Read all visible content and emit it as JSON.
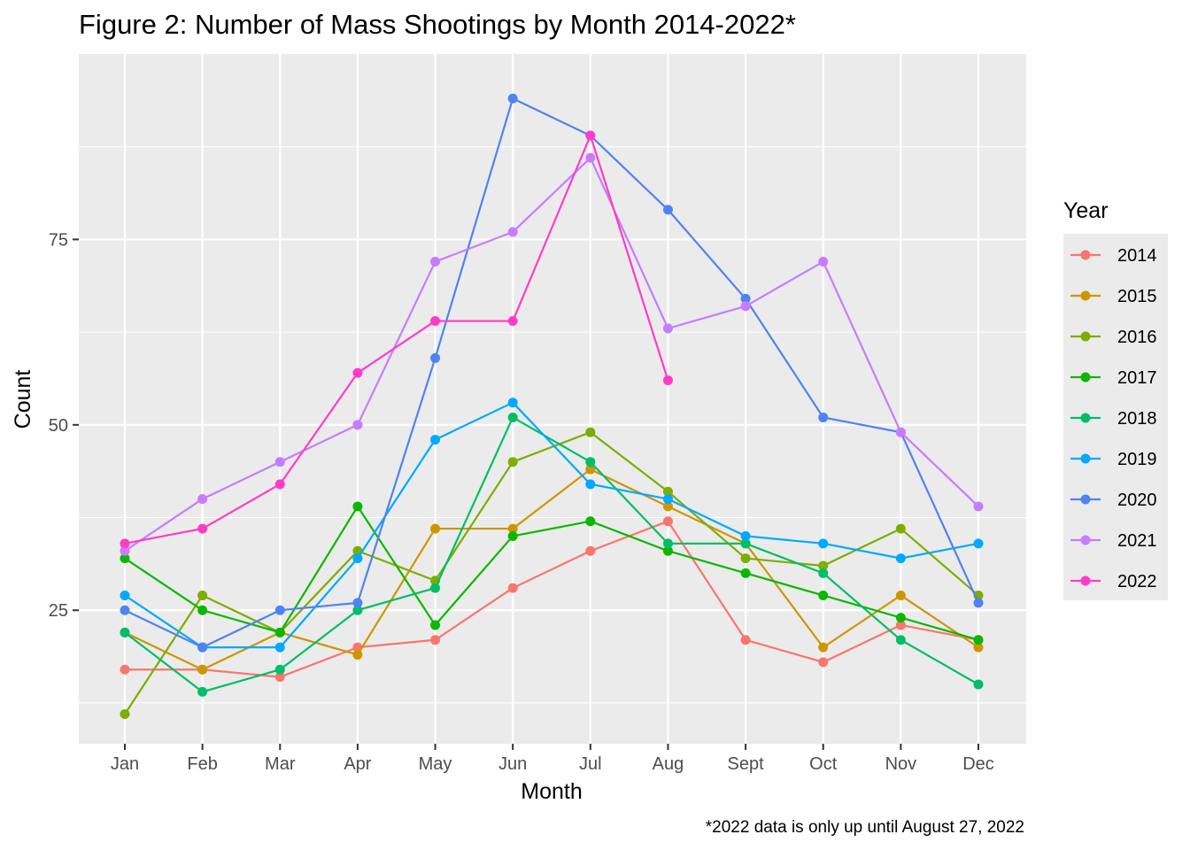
{
  "chart_data": {
    "type": "line",
    "title": "Figure 2: Number of Mass Shootings by Month 2014-2022*",
    "xlabel": "Month",
    "ylabel": "Count",
    "caption": "*2022 data is only up until August 27, 2022",
    "categories": [
      "Jan",
      "Feb",
      "Mar",
      "Apr",
      "May",
      "Jun",
      "Jul",
      "Aug",
      "Sept",
      "Oct",
      "Nov",
      "Dec"
    ],
    "ylim": [
      7,
      100
    ],
    "yticks": [
      25,
      50,
      75
    ],
    "y_minor_ticks": [
      12.5,
      37.5,
      62.5,
      87.5
    ],
    "grid": true,
    "legend": {
      "title": "Year",
      "position": "right"
    },
    "series": [
      {
        "name": "2014",
        "color": "#F8766D",
        "values": [
          17,
          17,
          16,
          20,
          21,
          28,
          33,
          37,
          21,
          18,
          23,
          21
        ]
      },
      {
        "name": "2015",
        "color": "#CD9600",
        "values": [
          22,
          17,
          22,
          19,
          36,
          36,
          44,
          39,
          34,
          20,
          27,
          20
        ]
      },
      {
        "name": "2016",
        "color": "#7CAE00",
        "values": [
          11,
          27,
          22,
          33,
          29,
          45,
          49,
          41,
          32,
          31,
          36,
          27
        ]
      },
      {
        "name": "2017",
        "color": "#0CB702",
        "values": [
          32,
          25,
          22,
          39,
          23,
          35,
          37,
          33,
          30,
          27,
          24,
          21
        ]
      },
      {
        "name": "2018",
        "color": "#00BE67",
        "values": [
          22,
          14,
          17,
          25,
          28,
          51,
          45,
          34,
          34,
          30,
          21,
          15
        ]
      },
      {
        "name": "2019",
        "color": "#00A9FF",
        "values": [
          27,
          20,
          20,
          32,
          48,
          53,
          42,
          40,
          35,
          34,
          32,
          34
        ]
      },
      {
        "name": "2020",
        "color": "#4F83F0",
        "values": [
          25,
          20,
          25,
          26,
          59,
          94,
          89,
          79,
          67,
          51,
          49,
          26
        ]
      },
      {
        "name": "2021",
        "color": "#C77CFF",
        "values": [
          33,
          40,
          45,
          50,
          72,
          76,
          86,
          63,
          66,
          72,
          49,
          39
        ]
      },
      {
        "name": "2022",
        "color": "#FF3CC8",
        "values": [
          34,
          36,
          42,
          57,
          64,
          64,
          89,
          56,
          null,
          null,
          null,
          null
        ]
      }
    ]
  }
}
